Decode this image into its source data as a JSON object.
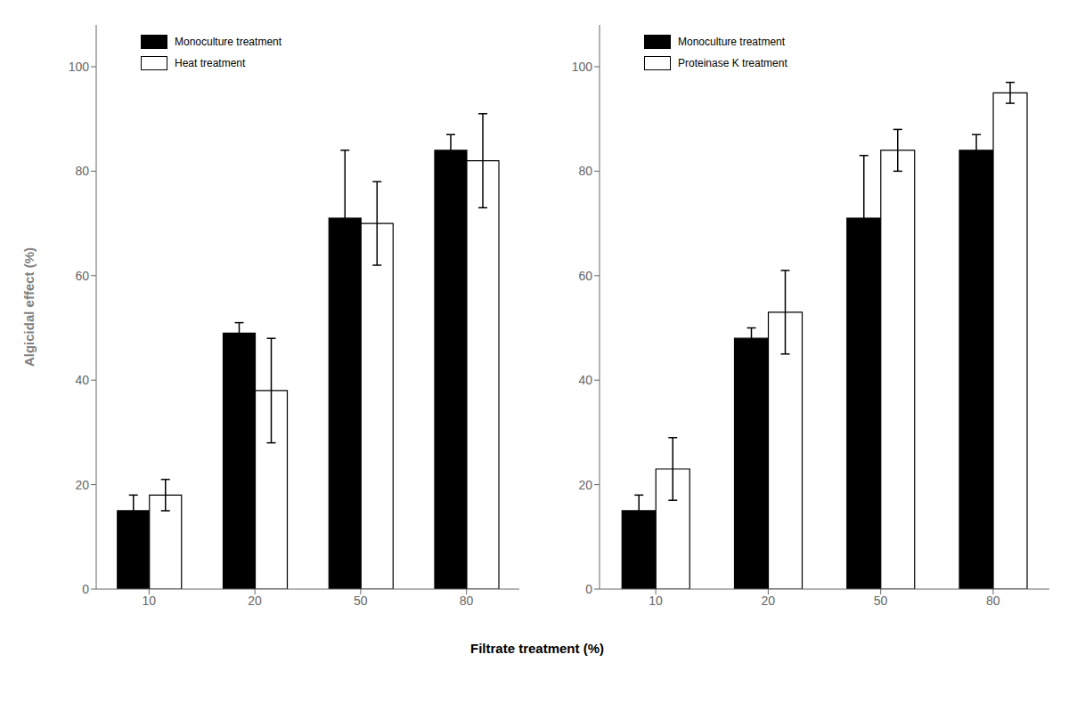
{
  "chart_data": [
    {
      "type": "bar",
      "categories": [
        "10",
        "20",
        "50",
        "80"
      ],
      "series": [
        {
          "name": "Monoculture treatment",
          "color": "#000000",
          "values": [
            15,
            49,
            71,
            84
          ],
          "errors": [
            3,
            2,
            13,
            3
          ]
        },
        {
          "name": "Heat treatment",
          "color": "#ffffff",
          "values": [
            18,
            38,
            70,
            82
          ],
          "errors": [
            3,
            10,
            8,
            9
          ]
        }
      ],
      "ylabel": "Algicidal effect (%)",
      "xlabel": "Filtrate treatment (%)",
      "ylim": [
        0,
        108
      ],
      "yticks": [
        0,
        20,
        40,
        60,
        80,
        100
      ],
      "legend": "upper left",
      "grid": false
    },
    {
      "type": "bar",
      "categories": [
        "10",
        "20",
        "50",
        "80"
      ],
      "series": [
        {
          "name": "Monoculture treatment",
          "color": "#000000",
          "values": [
            15,
            48,
            71,
            84
          ],
          "errors": [
            3,
            2,
            12,
            3
          ]
        },
        {
          "name": "Proteinase K treatment",
          "color": "#ffffff",
          "values": [
            23,
            53,
            84,
            95
          ],
          "errors": [
            6,
            8,
            4,
            2
          ]
        }
      ],
      "ylim": [
        0,
        108
      ],
      "yticks": [
        0,
        20,
        40,
        60,
        80,
        100
      ],
      "legend": "upper left",
      "grid": false
    }
  ]
}
